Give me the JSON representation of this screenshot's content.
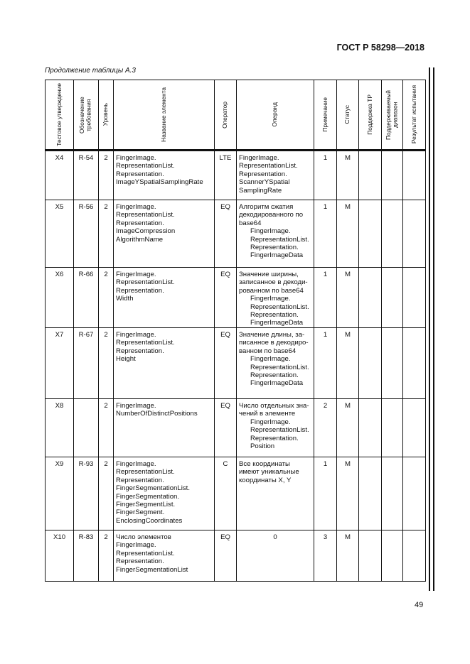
{
  "header": {
    "standard": "ГОСТ Р 58298—2018",
    "continuation": "Продолжение таблицы А.3"
  },
  "table": {
    "columns": [
      "Тестовое утверждение",
      "Обозначение требования",
      "Уровень",
      "Название элемента",
      "Оператор",
      "Операнд",
      "Примечание",
      "Статус",
      "Поддержка ТР",
      "Поддерживаемый диапазон",
      "Результат испытания"
    ],
    "rows": [
      {
        "id": "X4",
        "req": "R-54",
        "level": "2",
        "name": [
          "FingerImage.",
          "RepresentationList.",
          "Representation.",
          "ImageYSpatialSamplingRate"
        ],
        "op": "LTE",
        "operand": [
          "FingerImage.",
          "RepresentationList.",
          "Representation.",
          "ScannerYSpatial",
          "SamplingRate"
        ],
        "operand_sub": [],
        "note": "1",
        "status": "M"
      },
      {
        "id": "X5",
        "req": "R-56",
        "level": "2",
        "name": [
          "FingerImage.",
          "RepresentationList.",
          "Representation.",
          "ImageCompression",
          "AlgorithmName"
        ],
        "op": "EQ",
        "operand": [
          "Алгоритм сжатия",
          "декодированного по",
          "base64"
        ],
        "operand_sub": [
          "FingerImage.",
          "RepresentationList.",
          "Representation.",
          "FingerImageData"
        ],
        "note": "1",
        "status": "M"
      },
      {
        "id": "X6",
        "req": "R-66",
        "level": "2",
        "name": [
          "FingerImage.",
          "RepresentationList.",
          "Representation.",
          "Width"
        ],
        "op": "EQ",
        "operand": [
          "Значение ширины,",
          "записанное в декоди-",
          "рованном по base64"
        ],
        "operand_sub": [
          "FingerImage.",
          "RepresentationList.",
          "Representation.",
          "FingerImageData"
        ],
        "note": "1",
        "status": "M"
      },
      {
        "id": "X7",
        "req": "R-67",
        "level": "2",
        "name": [
          "FingerImage.",
          "RepresentationList.",
          "Representation.",
          "Height"
        ],
        "op": "EQ",
        "operand": [
          "Значение длины, за-",
          "писанное в декодиро-",
          "ванном по base64"
        ],
        "operand_sub": [
          "FingerImage.",
          "RepresentationList.",
          "Representation.",
          "FingerImageData"
        ],
        "note": "1",
        "status": "M"
      },
      {
        "id": "X8",
        "req": "",
        "level": "2",
        "name": [
          "FingerImage.",
          "NumberOfDistinctPositions"
        ],
        "op": "EQ",
        "operand": [
          "Число отдельных зна-",
          "чений в элементе"
        ],
        "operand_sub": [
          "FingerImage.",
          "RepresentationList.",
          "Representation.",
          "Position"
        ],
        "note": "2",
        "status": "M"
      },
      {
        "id": "X9",
        "req": "R-93",
        "level": "2",
        "name": [
          "FingerImage.",
          "RepresentationList.",
          "Representation.",
          "FingerSegmentationList.",
          "FingerSegmentation.",
          "FingerSegmentList.",
          "FingerSegment.",
          "EnclosingCoordinates"
        ],
        "op": "C",
        "operand": [
          "Все координаты",
          "имеют уникальные",
          "координаты X, Y"
        ],
        "operand_sub": [],
        "note": "1",
        "status": "M"
      },
      {
        "id": "X10",
        "req": "R-83",
        "level": "2",
        "name": [
          "Число элементов",
          "FingerImage.",
          "RepresentationList.",
          "Representation.",
          "FingerSegmentationList"
        ],
        "op": "EQ",
        "operand": [
          "0"
        ],
        "operand_sub": [],
        "note": "3",
        "status": "M",
        "operand_center": true
      }
    ]
  },
  "footer": {
    "page_number": "49"
  }
}
